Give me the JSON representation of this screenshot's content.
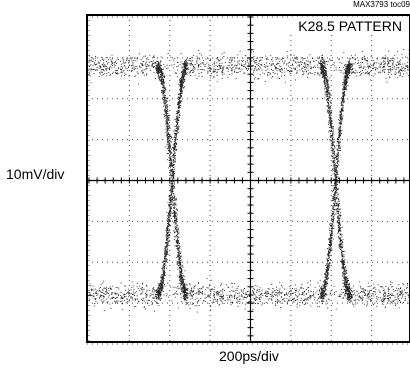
{
  "figure_id": "MAX3793 toc09",
  "chart_data": {
    "type": "scatter",
    "title": "K28.5 PATTERN",
    "xlabel": "200ps/div",
    "ylabel": "10mV/div",
    "x_divisions": 8,
    "y_divisions": 8,
    "grid": true,
    "levels": {
      "high": 2.8,
      "low": -2.8,
      "noise_sigma": 0.28
    },
    "crossings": [
      {
        "x": -1.95,
        "y": 0
      },
      {
        "x": 2.1,
        "y": 0
      }
    ],
    "transition_halfwidth": 0.36,
    "colors": {
      "trace": "#000000",
      "grid": "#000000",
      "background": "#ffffff"
    }
  }
}
